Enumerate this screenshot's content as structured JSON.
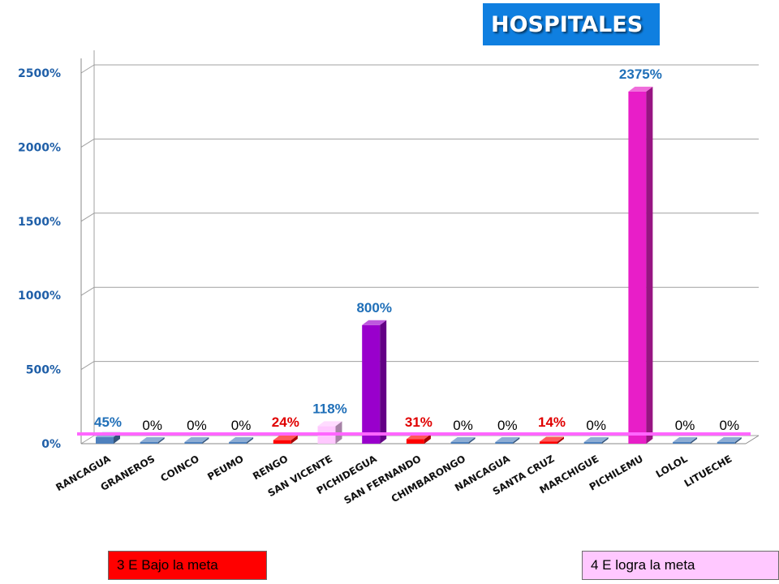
{
  "title": "HOSPITALES",
  "chart_data": {
    "type": "bar",
    "title": "HOSPITALES",
    "categories": [
      "RANCAGUA",
      "GRANEROS",
      "COINCO",
      "PEUMO",
      "RENGO",
      "SAN VICENTE",
      "PICHIDEGUA",
      "SAN FERNANDO",
      "CHIMBARONGO",
      "NANCAGUA",
      "SANTA CRUZ",
      "MARCHIGUE",
      "PICHILEMU",
      "LOLOL",
      "LITUECHE"
    ],
    "values": [
      45,
      0,
      0,
      0,
      24,
      118,
      800,
      31,
      0,
      0,
      14,
      0,
      2375,
      0,
      0
    ],
    "value_labels": [
      "45%",
      "0%",
      "0%",
      "0%",
      "24%",
      "118%",
      "800%",
      "31%",
      "0%",
      "0%",
      "14%",
      "0%",
      "2375%",
      "0%",
      "0%"
    ],
    "bar_colors": [
      "#4f81bd",
      "#4f81bd",
      "#4f81bd",
      "#4f81bd",
      "#ff0000",
      "#ffc8ff",
      "#9900cc",
      "#ff0000",
      "#4f81bd",
      "#4f81bd",
      "#ff0000",
      "#4f81bd",
      "#e81ec8",
      "#4f81bd",
      "#4f81bd"
    ],
    "label_colors": [
      "#1f6fb8",
      "#000000",
      "#000000",
      "#000000",
      "#e00000",
      "#1f6fb8",
      "#1f6fb8",
      "#e00000",
      "#000000",
      "#000000",
      "#e00000",
      "#000000",
      "#1f6fb8",
      "#000000",
      "#000000"
    ],
    "yticks": [
      0,
      500,
      1000,
      1500,
      2000,
      2500
    ],
    "ytick_labels": [
      "0%",
      "500%",
      "1000%",
      "1500%",
      "2000%",
      "2500%"
    ],
    "ylim": [
      0,
      2500
    ],
    "grid": true,
    "target_line_color": "#ff66ff"
  },
  "legend": {
    "below_goal": {
      "label": "3 E Bajo la meta",
      "color": "#ff0000"
    },
    "meets_goal": {
      "label": "4 E logra la meta",
      "color": "#ffc8ff"
    }
  }
}
